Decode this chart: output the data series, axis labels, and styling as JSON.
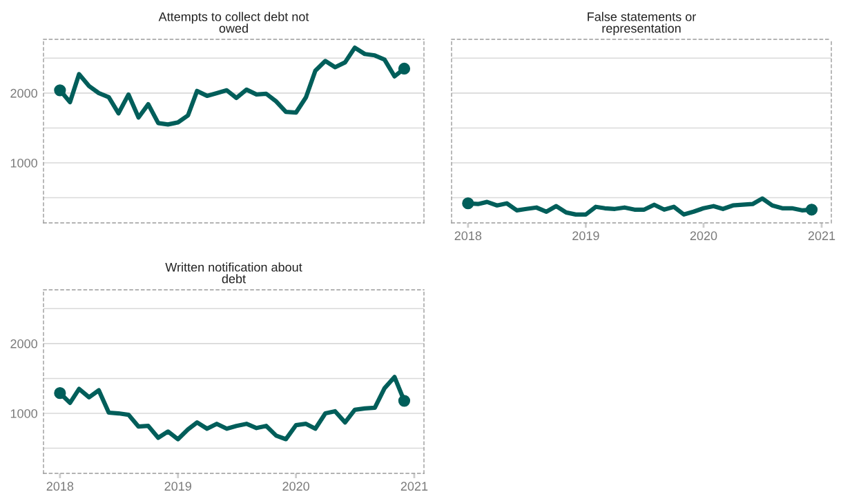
{
  "chart_data": [
    {
      "type": "line",
      "title": "Attempts to collect debt not\nowed",
      "x": [
        "2018-01",
        "2018-02",
        "2018-03",
        "2018-04",
        "2018-05",
        "2018-06",
        "2018-07",
        "2018-08",
        "2018-09",
        "2018-10",
        "2018-11",
        "2018-12",
        "2019-01",
        "2019-02",
        "2019-03",
        "2019-04",
        "2019-05",
        "2019-06",
        "2019-07",
        "2019-08",
        "2019-09",
        "2019-10",
        "2019-11",
        "2019-12",
        "2020-01",
        "2020-02",
        "2020-03",
        "2020-04",
        "2020-05",
        "2020-06",
        "2020-07",
        "2020-08",
        "2020-09",
        "2020-10",
        "2020-11",
        "2020-12"
      ],
      "series": [
        {
          "color": "#005e5a",
          "values": [
            2040,
            1870,
            2270,
            2100,
            2000,
            1940,
            1710,
            1980,
            1650,
            1840,
            1570,
            1550,
            1580,
            1680,
            2030,
            1960,
            2000,
            2040,
            1930,
            2050,
            1980,
            1990,
            1880,
            1730,
            1720,
            1940,
            2320,
            2460,
            2370,
            2440,
            2650,
            2560,
            2540,
            2480,
            2240,
            2350
          ]
        },
        {
          "type": "scatter",
          "marker": "circle",
          "color": "#005e5a",
          "x": [
            "2018-01",
            "2020-12"
          ],
          "values": [
            2040,
            2350
          ]
        }
      ],
      "xlim": [
        "2017-11-11",
        "2021-01-31"
      ],
      "xticks": [
        "2018",
        "2019",
        "2020",
        "2021"
      ],
      "ylim": [
        140,
        2770
      ],
      "yticks": [
        {
          "value": 500,
          "label": null
        },
        1000,
        {
          "value": 1500,
          "label": null
        },
        2000,
        {
          "value": 2500,
          "label": null
        }
      ],
      "grid": "y",
      "line_style": "solid",
      "tick_labels": "y"
    },
    {
      "type": "line",
      "title": "False statements or\nrepresentation",
      "x": [
        "2018-01",
        "2018-02",
        "2018-03",
        "2018-04",
        "2018-05",
        "2018-06",
        "2018-07",
        "2018-08",
        "2018-09",
        "2018-10",
        "2018-11",
        "2018-12",
        "2019-01",
        "2019-02",
        "2019-03",
        "2019-04",
        "2019-05",
        "2019-06",
        "2019-07",
        "2019-08",
        "2019-09",
        "2019-10",
        "2019-11",
        "2019-12",
        "2020-01",
        "2020-02",
        "2020-03",
        "2020-04",
        "2020-05",
        "2020-06",
        "2020-07",
        "2020-08",
        "2020-09",
        "2020-10",
        "2020-11",
        "2020-12"
      ],
      "series": [
        {
          "color": "#005e5a",
          "values": [
            420,
            410,
            440,
            390,
            420,
            320,
            340,
            360,
            300,
            380,
            290,
            260,
            260,
            370,
            350,
            340,
            360,
            330,
            330,
            400,
            330,
            370,
            260,
            300,
            350,
            380,
            340,
            390,
            400,
            410,
            490,
            390,
            350,
            350,
            320,
            330
          ]
        },
        {
          "type": "scatter",
          "marker": "circle",
          "color": "#005e5a",
          "x": [
            "2018-01",
            "2020-12"
          ],
          "values": [
            420,
            330
          ]
        }
      ],
      "xlim": [
        "2017-11-11",
        "2021-01-31"
      ],
      "xticks": [
        "2018",
        "2019",
        "2020",
        "2021"
      ],
      "ylim": [
        140,
        2770
      ],
      "yticks": [
        {
          "value": 500,
          "label": null
        },
        1000,
        {
          "value": 1500,
          "label": null
        },
        2000,
        {
          "value": 2500,
          "label": null
        }
      ],
      "grid": "y",
      "line_style": "solid",
      "tick_labels": "x"
    },
    {
      "type": "line",
      "title": "Written notification about\ndebt",
      "x": [
        "2018-01",
        "2018-02",
        "2018-03",
        "2018-04",
        "2018-05",
        "2018-06",
        "2018-07",
        "2018-08",
        "2018-09",
        "2018-10",
        "2018-11",
        "2018-12",
        "2019-01",
        "2019-02",
        "2019-03",
        "2019-04",
        "2019-05",
        "2019-06",
        "2019-07",
        "2019-08",
        "2019-09",
        "2019-10",
        "2019-11",
        "2019-12",
        "2020-01",
        "2020-02",
        "2020-03",
        "2020-04",
        "2020-05",
        "2020-06",
        "2020-07",
        "2020-08",
        "2020-09",
        "2020-10",
        "2020-11",
        "2020-12"
      ],
      "series": [
        {
          "color": "#005e5a",
          "values": [
            1290,
            1150,
            1350,
            1230,
            1330,
            1010,
            1000,
            980,
            810,
            820,
            650,
            740,
            630,
            770,
            870,
            780,
            850,
            780,
            820,
            850,
            790,
            820,
            680,
            630,
            830,
            850,
            780,
            1000,
            1030,
            870,
            1050,
            1070,
            1080,
            1360,
            1520,
            1180
          ]
        },
        {
          "type": "scatter",
          "marker": "circle",
          "color": "#005e5a",
          "x": [
            "2018-01",
            "2020-12"
          ],
          "values": [
            1290,
            1180
          ]
        }
      ],
      "xlim": [
        "2017-11-11",
        "2021-01-31"
      ],
      "xticks": [
        "2018",
        "2019",
        "2020",
        "2021"
      ],
      "ylim": [
        140,
        2770
      ],
      "yticks": [
        {
          "value": 500,
          "label": null
        },
        1000,
        {
          "value": 1500,
          "label": null
        },
        2000,
        {
          "value": 2500,
          "label": null
        }
      ],
      "grid": "y",
      "line_style": "solid"
    }
  ]
}
